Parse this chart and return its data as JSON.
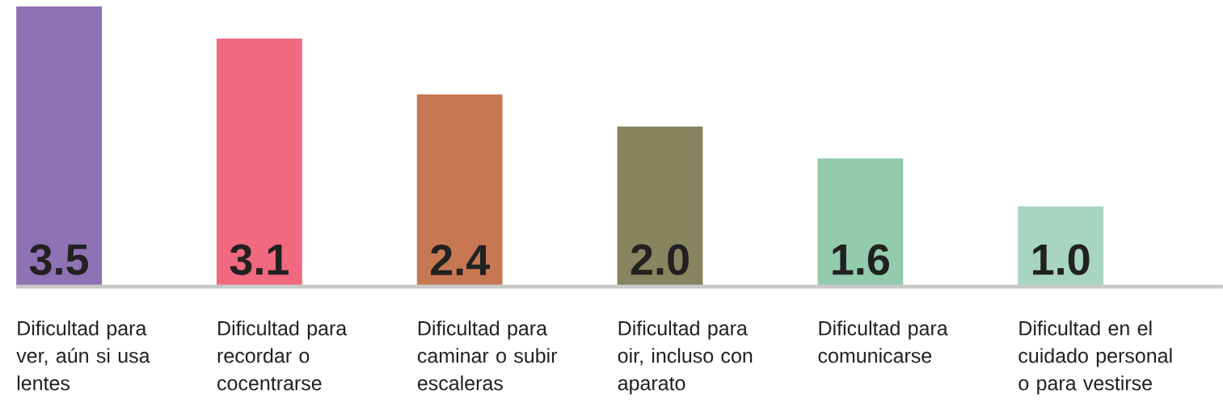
{
  "chart_data": {
    "type": "bar",
    "categories": [
      "Dificultad para ver, aún si usa lentes",
      "Dificultad para recordar o cocentrarse",
      "Dificultad para caminar o subir escaleras",
      "Dificultad para oir, incluso con aparato",
      "Dificultad para comunicarse",
      "Dificultad en el cuidado personal o para vestirse"
    ],
    "values": [
      3.5,
      3.1,
      2.4,
      2.0,
      1.6,
      1.0
    ],
    "value_labels": [
      "3.5",
      "3.1",
      "2.4",
      "2.0",
      "1.6",
      "1.0"
    ],
    "colors": [
      "#8e72b4",
      "#f0697e",
      "#c77853",
      "#878460",
      "#92cbae",
      "#a7d5bf"
    ],
    "data_labels": true
  }
}
